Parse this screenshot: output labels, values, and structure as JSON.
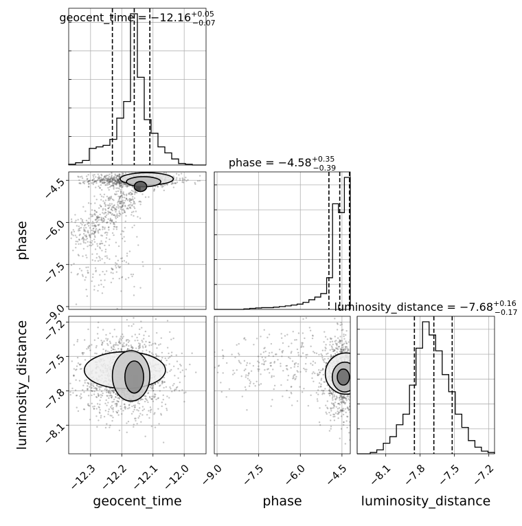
{
  "chart_data": {
    "type": "corner",
    "parameters": [
      "geocent_time",
      "phase",
      "luminosity_distance"
    ],
    "titles": [
      {
        "param": "geocent_time",
        "prefix": "geocent_time = ",
        "median": "−12.16",
        "plus": "+0.05",
        "minus": "−0.07"
      },
      {
        "param": "phase",
        "prefix": "phase = ",
        "median": "−4.58",
        "plus": "+0.35",
        "minus": "−0.39"
      },
      {
        "param": "luminosity_distance",
        "prefix": "luminosity_distance = ",
        "median": "−7.68",
        "plus": "+0.16",
        "minus": "−0.17"
      }
    ],
    "axis_ranges": {
      "geocent_time": [
        -12.37,
        -11.93
      ],
      "phase": [
        -9.1,
        -4.2
      ],
      "luminosity_distance": [
        -8.35,
        -7.15
      ]
    },
    "ticks": {
      "geocent_time": [
        {
          "value": -12.3,
          "label": "−12.3"
        },
        {
          "value": -12.2,
          "label": "−12.2"
        },
        {
          "value": -12.1,
          "label": "−12.1"
        },
        {
          "value": -12.0,
          "label": "−12.0"
        }
      ],
      "phase": [
        {
          "value": -9.0,
          "label": "−9.0"
        },
        {
          "value": -7.5,
          "label": "−7.5"
        },
        {
          "value": -6.0,
          "label": "−6.0"
        },
        {
          "value": -4.5,
          "label": "−4.5"
        }
      ],
      "luminosity_distance": [
        {
          "value": -8.1,
          "label": "−8.1"
        },
        {
          "value": -7.8,
          "label": "−7.8"
        },
        {
          "value": -7.5,
          "label": "−7.5"
        },
        {
          "value": -7.2,
          "label": "−7.2"
        }
      ]
    },
    "quantiles": {
      "geocent_time": [
        -12.23,
        -12.16,
        -12.11
      ],
      "phase": [
        -4.97,
        -4.58,
        -4.23
      ],
      "luminosity_distance": [
        -7.85,
        -7.68,
        -7.52
      ]
    },
    "histograms": {
      "geocent_time": {
        "range": [
          -12.37,
          -11.93
        ],
        "counts": [
          0.5,
          1.5,
          3,
          11,
          12,
          13,
          17,
          31,
          42,
          100,
          58,
          30,
          21,
          12,
          8,
          4,
          1,
          0.5,
          0,
          0
        ]
      },
      "phase": {
        "range": [
          -9.1,
          -4.2
        ],
        "counts": [
          0,
          0,
          0,
          0,
          0,
          0.3,
          0.6,
          0.8,
          1,
          1,
          1.3,
          1.6,
          2,
          2.5,
          3,
          4,
          5.5,
          7,
          9,
          18,
          60,
          55,
          75
        ]
      },
      "luminosity_distance": {
        "range": [
          -8.35,
          -7.15
        ],
        "counts": [
          0,
          0,
          1,
          3,
          8,
          13,
          22,
          30,
          52,
          80,
          100,
          90,
          78,
          60,
          47,
          30,
          20,
          10,
          5,
          2,
          1
        ]
      }
    },
    "grid": true
  }
}
